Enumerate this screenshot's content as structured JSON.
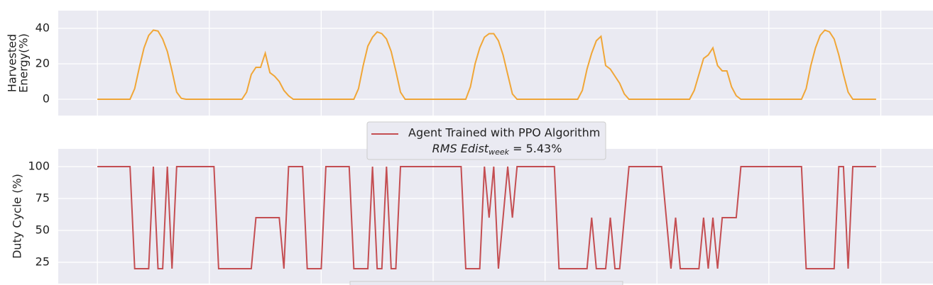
{
  "chart_data": [
    {
      "type": "line",
      "ylabel": [
        "Harvested",
        "Energy(%)"
      ],
      "color": "#f0a637",
      "grid": true,
      "ylim": [
        -9.2,
        50
      ],
      "yticks": [
        0,
        20,
        40
      ],
      "xlim": [
        -8.4,
        179.2
      ],
      "xticks": [
        0,
        24,
        48,
        72,
        96,
        120,
        144,
        168
      ],
      "x": [
        0,
        1,
        2,
        3,
        4,
        5,
        6,
        7,
        8,
        9,
        10,
        11,
        12,
        13,
        14,
        15,
        16,
        17,
        18,
        19,
        20,
        21,
        22,
        23,
        24,
        25,
        26,
        27,
        28,
        29,
        30,
        31,
        32,
        33,
        34,
        35,
        36,
        37,
        38,
        39,
        40,
        41,
        42,
        43,
        44,
        45,
        46,
        47,
        48,
        49,
        50,
        51,
        52,
        53,
        54,
        55,
        56,
        57,
        58,
        59,
        60,
        61,
        62,
        63,
        64,
        65,
        66,
        67,
        68,
        69,
        70,
        71,
        72,
        73,
        74,
        75,
        76,
        77,
        78,
        79,
        80,
        81,
        82,
        83,
        84,
        85,
        86,
        87,
        88,
        89,
        90,
        91,
        92,
        93,
        94,
        95,
        96,
        97,
        98,
        99,
        100,
        101,
        102,
        103,
        104,
        105,
        106,
        107,
        108,
        109,
        110,
        111,
        112,
        113,
        114,
        115,
        116,
        117,
        118,
        119,
        120,
        121,
        122,
        123,
        124,
        125,
        126,
        127,
        128,
        129,
        130,
        131,
        132,
        133,
        134,
        135,
        136,
        137,
        138,
        139,
        140,
        141,
        142,
        143,
        144,
        145,
        146,
        147,
        148,
        149,
        150,
        151,
        152,
        153,
        154,
        155,
        156,
        157,
        158,
        159,
        160,
        161,
        162,
        163,
        164,
        165,
        166,
        167
      ],
      "values": [
        0,
        0,
        0,
        0,
        0,
        0,
        0,
        0,
        6,
        18,
        29,
        36,
        39,
        38.5,
        34,
        27,
        16,
        4,
        0.5,
        0,
        0,
        0,
        0,
        0,
        0,
        0,
        0,
        0,
        0,
        0,
        0,
        0,
        4,
        14,
        18,
        18,
        26,
        15,
        13,
        10,
        5,
        2,
        0,
        0,
        0,
        0,
        0,
        0,
        0,
        0,
        0,
        0,
        0,
        0,
        0,
        0,
        6,
        19,
        30,
        35,
        38,
        37,
        34,
        27,
        16,
        4,
        0,
        0,
        0,
        0,
        0,
        0,
        0,
        0,
        0,
        0,
        0,
        0,
        0,
        0,
        7,
        20,
        29,
        35,
        37,
        37,
        33,
        25,
        14,
        3,
        0,
        0,
        0,
        0,
        0,
        0,
        0,
        0,
        0,
        0,
        0,
        0,
        0,
        0,
        5,
        17,
        26,
        33,
        35.5,
        19,
        17,
        13,
        9,
        3,
        0,
        0,
        0,
        0,
        0,
        0,
        0,
        0,
        0,
        0,
        0,
        0,
        0,
        0,
        5,
        14,
        23,
        25,
        29,
        19,
        16,
        16,
        7,
        2,
        0,
        0,
        0,
        0,
        0,
        0,
        0,
        0,
        0,
        0,
        0,
        0,
        0,
        0,
        6,
        19,
        29,
        36,
        39,
        38,
        34,
        25,
        14,
        4,
        0,
        0,
        0,
        0,
        0,
        0
      ]
    },
    {
      "type": "line",
      "ylabel": "Duty Cycle (%)",
      "grid": true,
      "ylim": [
        8.3,
        113.9
      ],
      "yticks": [
        25,
        50,
        75,
        100
      ],
      "xlim": [
        -8.4,
        179.2
      ],
      "xticks": [
        0,
        24,
        48,
        72,
        96,
        120,
        144,
        168
      ],
      "annotation": {
        "text": "RMS Edist",
        "subscript": "week",
        "suffix": " = 5.43%"
      },
      "x": [
        0,
        1,
        2,
        3,
        4,
        5,
        6,
        7,
        8,
        9,
        10,
        11,
        12,
        13,
        14,
        15,
        16,
        17,
        18,
        19,
        20,
        21,
        22,
        23,
        24,
        25,
        26,
        27,
        28,
        29,
        30,
        31,
        32,
        33,
        34,
        35,
        36,
        37,
        38,
        39,
        40,
        41,
        42,
        43,
        44,
        45,
        46,
        47,
        48,
        49,
        50,
        51,
        52,
        53,
        54,
        55,
        56,
        57,
        58,
        59,
        60,
        61,
        62,
        63,
        64,
        65,
        66,
        67,
        68,
        69,
        70,
        71,
        72,
        73,
        74,
        75,
        76,
        77,
        78,
        79,
        80,
        81,
        82,
        83,
        84,
        85,
        86,
        87,
        88,
        89,
        90,
        91,
        92,
        93,
        94,
        95,
        96,
        97,
        98,
        99,
        100,
        101,
        102,
        103,
        104,
        105,
        106,
        107,
        108,
        109,
        110,
        111,
        112,
        113,
        114,
        115,
        116,
        117,
        118,
        119,
        120,
        121,
        122,
        123,
        124,
        125,
        126,
        127,
        128,
        129,
        130,
        131,
        132,
        133,
        134,
        135,
        136,
        137,
        138,
        139,
        140,
        141,
        142,
        143,
        144,
        145,
        146,
        147,
        148,
        149,
        150,
        151,
        152,
        153,
        154,
        155,
        156,
        157,
        158,
        159,
        160,
        161,
        162,
        163,
        164,
        165,
        166,
        167
      ],
      "series": [
        {
          "name": "Agent Trained with PPO Algorithm",
          "color": "#c44e52",
          "values": [
            100,
            100,
            100,
            100,
            100,
            100,
            100,
            100,
            20,
            20,
            20,
            20,
            100,
            20,
            20,
            100,
            20,
            100,
            100,
            100,
            100,
            100,
            100,
            100,
            100,
            100,
            20,
            20,
            20,
            20,
            20,
            20,
            20,
            20,
            60,
            60,
            60,
            60,
            60,
            60,
            20,
            100,
            100,
            100,
            100,
            20,
            20,
            20,
            20,
            100,
            100,
            100,
            100,
            100,
            100,
            20,
            20,
            20,
            20,
            100,
            20,
            20,
            100,
            20,
            20,
            100,
            100,
            100,
            100,
            100,
            100,
            100,
            100,
            100,
            100,
            100,
            100,
            100,
            100,
            20,
            20,
            20,
            20,
            100,
            60,
            100,
            20,
            60,
            100,
            60,
            100,
            100,
            100,
            100,
            100,
            100,
            100,
            100,
            100,
            20,
            20,
            20,
            20,
            20,
            20,
            20,
            60,
            20,
            20,
            20,
            60,
            20,
            20,
            60,
            100,
            100,
            100,
            100,
            100,
            100,
            100,
            100,
            60,
            20,
            60,
            20,
            20,
            20,
            20,
            20,
            60,
            20,
            60,
            20,
            60,
            60,
            60,
            60,
            100,
            100,
            100,
            100,
            100,
            100,
            100,
            100,
            100,
            100,
            100,
            100,
            100,
            100,
            20,
            20,
            20,
            20,
            20,
            20,
            20,
            100,
            100,
            20,
            100,
            100,
            100,
            100,
            100,
            100
          ]
        }
      ]
    }
  ]
}
